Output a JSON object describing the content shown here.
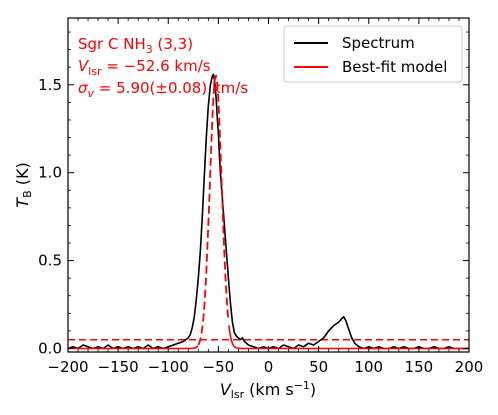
{
  "chart_data": {
    "type": "line",
    "xlim": [
      -200,
      200
    ],
    "ylim": [
      -0.02,
      1.88
    ],
    "x_ticks": [
      -200,
      -150,
      -100,
      -50,
      0,
      50,
      100,
      150,
      200
    ],
    "y_ticks": [
      0.0,
      0.5,
      1.0,
      1.5
    ],
    "x_tick_labels": [
      "−200",
      "−150",
      "−100",
      "−50",
      "0",
      "50",
      "100",
      "150",
      "200"
    ],
    "y_tick_labels": [
      "0.0",
      "0.5",
      "1.0",
      "1.5"
    ],
    "xlabel": {
      "main": "V",
      "sub": "lsr",
      "rest": " (km s",
      "sup": "−1",
      "close": ")"
    },
    "ylabel": {
      "main": "T",
      "sub": "B",
      "rest": " (K)"
    },
    "annotation": {
      "line1": {
        "a": "Sgr C NH",
        "sub": "3",
        "b": " (3,3)"
      },
      "line2": {
        "a": "V",
        "sub": "lsr",
        "b": " = −52.6 km/s"
      },
      "line3": {
        "a": "σ",
        "sub": "v",
        "b": " = 5.90(±0.08) km/s"
      }
    },
    "threshold": 0.05,
    "colors": {
      "spectrum": "#000000",
      "model": "#ff0000"
    },
    "series": [
      {
        "name": "Spectrum",
        "x": [
          -200,
          -195,
          -190,
          -185,
          -180,
          -175,
          -170,
          -165,
          -160,
          -155,
          -150,
          -145,
          -140,
          -135,
          -130,
          -125,
          -120,
          -115,
          -110,
          -105,
          -100,
          -95,
          -90,
          -85,
          -80,
          -78,
          -76,
          -74,
          -72,
          -70,
          -68,
          -66,
          -64,
          -62,
          -60,
          -58,
          -56,
          -55,
          -54,
          -53,
          -52,
          -51,
          -50,
          -49,
          -48,
          -46,
          -44,
          -42,
          -40,
          -38,
          -36,
          -34,
          -32,
          -30,
          -28,
          -26,
          -24,
          -22,
          -20,
          -15,
          -10,
          -5,
          0,
          5,
          10,
          15,
          20,
          25,
          30,
          35,
          40,
          45,
          50,
          55,
          60,
          65,
          70,
          73,
          75,
          77,
          80,
          83,
          86,
          90,
          95,
          100,
          105,
          110,
          115,
          120,
          125,
          130,
          135,
          140,
          145,
          150,
          155,
          160,
          165,
          170,
          175,
          180,
          185,
          190,
          195,
          200
        ],
        "y": [
          0.0,
          0.01,
          0.0,
          0.02,
          0.01,
          0.0,
          0.01,
          0.0,
          0.02,
          0.0,
          0.01,
          0.0,
          0.01,
          0.0,
          0.01,
          0.0,
          0.02,
          0.0,
          0.01,
          0.0,
          0.01,
          0.02,
          0.03,
          0.04,
          0.06,
          0.08,
          0.12,
          0.18,
          0.28,
          0.4,
          0.55,
          0.75,
          0.98,
          1.2,
          1.38,
          1.5,
          1.55,
          1.56,
          1.53,
          1.48,
          1.4,
          1.3,
          1.22,
          1.1,
          1.0,
          0.85,
          0.7,
          0.55,
          0.4,
          0.26,
          0.15,
          0.09,
          0.07,
          0.06,
          0.05,
          0.06,
          0.04,
          0.03,
          0.02,
          0.01,
          0.0,
          0.01,
          0.0,
          0.01,
          0.0,
          0.02,
          0.01,
          0.0,
          0.02,
          0.01,
          0.03,
          0.02,
          0.04,
          0.06,
          0.1,
          0.13,
          0.15,
          0.17,
          0.18,
          0.16,
          0.11,
          0.06,
          0.03,
          0.01,
          0.0,
          0.01,
          0.0,
          0.01,
          0.0,
          0.0,
          0.01,
          0.0,
          0.01,
          0.0,
          0.0,
          0.01,
          0.0,
          0.0,
          0.01,
          0.0,
          0.0,
          0.01,
          0.0,
          0.0,
          0.0,
          0.0
        ]
      },
      {
        "name": "Best-fit model",
        "model": {
          "amplitude": 1.55,
          "center": -52.6,
          "sigma": 5.9,
          "dash_from": -70,
          "dash_to": -40
        }
      }
    ],
    "legend": {
      "placement": "top-right",
      "entries": [
        "Spectrum",
        "Best-fit model"
      ]
    }
  }
}
